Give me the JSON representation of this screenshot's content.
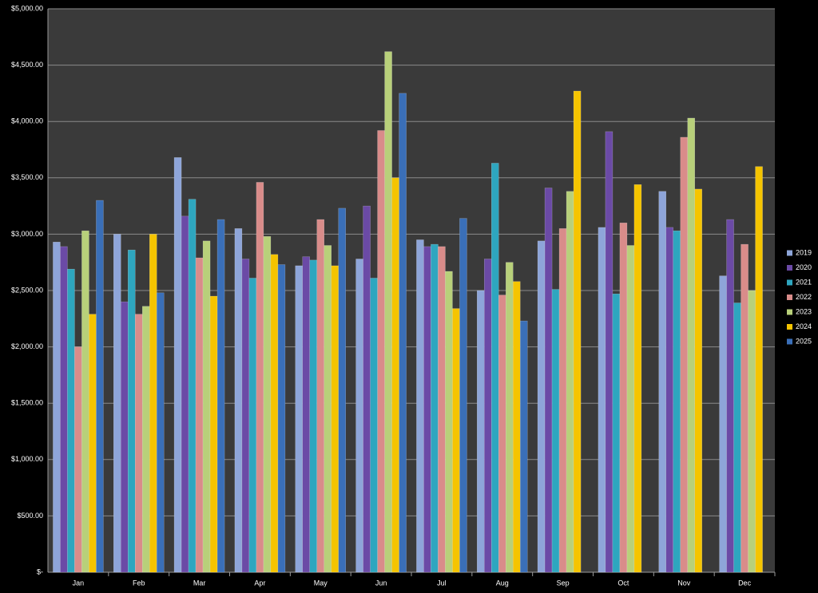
{
  "chart_data": {
    "type": "bar",
    "categories": [
      "Jan",
      "Feb",
      "Mar",
      "Apr",
      "May",
      "Jun",
      "Jul",
      "Aug",
      "Sep",
      "Oct",
      "Nov",
      "Dec"
    ],
    "series": [
      {
        "name": "2019",
        "color": "#8ea5d9",
        "values": [
          2930,
          3000,
          3680,
          3050,
          2720,
          2780,
          2950,
          2500,
          2940,
          3060,
          3380,
          2630
        ]
      },
      {
        "name": "2020",
        "color": "#6b4aa6",
        "values": [
          2890,
          2400,
          3160,
          2780,
          2800,
          3250,
          2890,
          2780,
          3410,
          3910,
          3060,
          3130
        ]
      },
      {
        "name": "2021",
        "color": "#2ea6bf",
        "values": [
          2690,
          2860,
          3310,
          2610,
          2770,
          2610,
          2910,
          3630,
          2510,
          2470,
          3030,
          2390
        ]
      },
      {
        "name": "2022",
        "color": "#d98c8a",
        "values": [
          2000,
          2290,
          2790,
          3460,
          3130,
          3920,
          2890,
          2460,
          3050,
          3100,
          3860,
          2910
        ]
      },
      {
        "name": "2023",
        "color": "#b8d07a",
        "values": [
          3030,
          2360,
          2940,
          2980,
          2900,
          4620,
          2670,
          2750,
          3380,
          2900,
          4030,
          2500
        ]
      },
      {
        "name": "2024",
        "color": "#f5c400",
        "values": [
          2290,
          3000,
          2450,
          2820,
          2720,
          3500,
          2340,
          2580,
          4270,
          3440,
          3400,
          3600
        ]
      },
      {
        "name": "2025",
        "color": "#3a6fb8",
        "values": [
          3300,
          2480,
          3130,
          2730,
          3230,
          4250,
          3140,
          2230,
          null,
          null,
          null,
          null
        ]
      }
    ],
    "ylim": [
      0,
      5000
    ],
    "yticks": [
      {
        "value": 0,
        "label": "$-"
      },
      {
        "value": 500,
        "label": "$500.00"
      },
      {
        "value": 1000,
        "label": "$1,000.00"
      },
      {
        "value": 1500,
        "label": "$1,500.00"
      },
      {
        "value": 2000,
        "label": "$2,000.00"
      },
      {
        "value": 2500,
        "label": "$2,500.00"
      },
      {
        "value": 3000,
        "label": "$3,000.00"
      },
      {
        "value": 3500,
        "label": "$3,500.00"
      },
      {
        "value": 4000,
        "label": "$4,000.00"
      },
      {
        "value": 4500,
        "label": "$4,500.00"
      },
      {
        "value": 5000,
        "label": "$5,000.00"
      }
    ],
    "grid": true,
    "legend": "right"
  }
}
